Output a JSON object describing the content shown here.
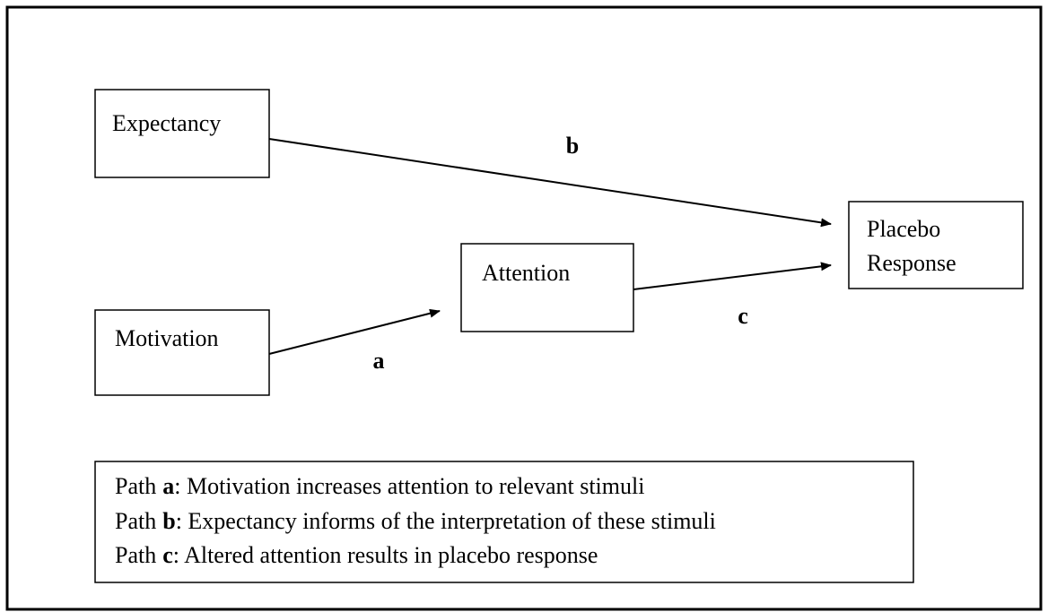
{
  "nodes": [
    {
      "label": "Expectancy"
    },
    {
      "label": "Motivation"
    },
    {
      "label": "Attention"
    },
    {
      "lines": [
        "Placebo",
        "Response"
      ]
    }
  ],
  "edges": [
    {
      "label": "b"
    },
    {
      "label": "a"
    },
    {
      "label": "c"
    }
  ],
  "legend": [
    {
      "prefix": "Path",
      "key": "a",
      "text": ": Motivation increases attention to relevant stimuli"
    },
    {
      "prefix": "Path",
      "key": "b",
      "text": ": Expectancy informs of the interpretation of these stimuli"
    },
    {
      "prefix": "Path",
      "key": "c",
      "text": ": Altered attention results in placebo response"
    }
  ]
}
